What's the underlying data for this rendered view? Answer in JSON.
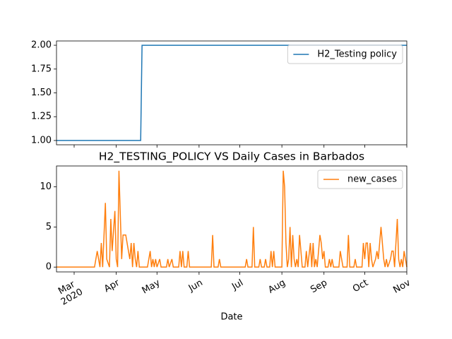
{
  "chart_data": [
    {
      "type": "line",
      "xlim": [
        18309,
        18567
      ],
      "ylim": [
        0.955,
        2.045
      ],
      "yticks": [
        {
          "value": 1,
          "label": "1.00"
        },
        {
          "value": 1.25,
          "label": "1.25"
        },
        {
          "value": 1.5,
          "label": "1.50"
        },
        {
          "value": 1.75,
          "label": "1.75"
        },
        {
          "value": 2,
          "label": "2.00"
        }
      ],
      "legend": "upper right",
      "series": [
        {
          "name": "H2_Testing policy",
          "color": "#1f77b4",
          "x": [
            18309,
            18371,
            18372,
            18567
          ],
          "values": [
            1,
            1,
            2,
            2
          ]
        }
      ]
    },
    {
      "type": "line",
      "title": "H2_TESTING_POLICY VS Daily Cases in Barbados",
      "xlabel": "Date",
      "xlim": [
        18309,
        18567
      ],
      "ylim": [
        -0.6,
        12.6
      ],
      "yticks": [
        0,
        5,
        10
      ],
      "xticks": [
        {
          "value": 18322,
          "label": "Mar\n2020"
        },
        {
          "value": 18353,
          "label": "Apr"
        },
        {
          "value": 18383,
          "label": "May"
        },
        {
          "value": 18414,
          "label": "Jun"
        },
        {
          "value": 18444,
          "label": "Jul"
        },
        {
          "value": 18475,
          "label": "Aug"
        },
        {
          "value": 18506,
          "label": "Sep"
        },
        {
          "value": 18536,
          "label": "Oct"
        },
        {
          "value": 18567,
          "label": "Nov"
        }
      ],
      "legend": "upper right",
      "series": [
        {
          "name": "new_cases",
          "color": "#ff7f0e",
          "x": [
            18309,
            18337,
            18339,
            18341,
            18342,
            18343,
            18345,
            18346,
            18348,
            18349,
            18350,
            18352,
            18353,
            18354,
            18355,
            18357,
            18358,
            18360,
            18362,
            18363,
            18364,
            18365,
            18366,
            18367,
            18368,
            18369,
            18370,
            18376,
            18377,
            18378,
            18379,
            18380,
            18381,
            18382,
            18383,
            18385,
            18386,
            18390,
            18391,
            18392,
            18394,
            18395,
            18399,
            18400,
            18401,
            18402,
            18403,
            18405,
            18406,
            18407,
            18423,
            18424,
            18425,
            18428,
            18429,
            18430,
            18448,
            18449,
            18450,
            18453,
            18454,
            18455,
            18458,
            18459,
            18460,
            18462,
            18463,
            18464,
            18466,
            18467,
            18468,
            18469,
            18470,
            18475,
            18476,
            18477,
            18478,
            18479,
            18480,
            18481,
            18482,
            18483,
            18484,
            18485,
            18486,
            18487,
            18488,
            18489,
            18490,
            18492,
            18493,
            18494,
            18496,
            18497,
            18498,
            18499,
            18500,
            18501,
            18503,
            18504,
            18505,
            18506,
            18507,
            18509,
            18510,
            18511,
            18512,
            18513,
            18517,
            18518,
            18519,
            18520,
            18523,
            18524,
            18525,
            18528,
            18529,
            18530,
            18534,
            18535,
            18536,
            18537,
            18538,
            18539,
            18540,
            18541,
            18542,
            18544,
            18545,
            18546,
            18547,
            18548,
            18549,
            18550,
            18551,
            18552,
            18553,
            18555,
            18556,
            18557,
            18558,
            18560,
            18561,
            18562,
            18563,
            18564,
            18565,
            18566,
            18567
          ],
          "values": [
            0,
            0,
            2,
            0,
            3,
            0,
            8,
            1,
            0,
            6,
            2,
            7,
            1,
            0,
            12,
            1,
            4,
            4,
            2,
            1,
            3,
            0,
            3,
            1,
            0,
            2,
            0,
            0,
            1,
            2,
            0,
            1,
            0,
            1,
            0,
            1,
            0,
            0,
            1,
            0,
            1,
            0,
            0,
            2,
            0,
            2,
            0,
            0,
            2,
            0,
            0,
            4,
            0,
            0,
            1,
            0,
            0,
            1,
            0,
            0,
            5,
            0,
            0,
            1,
            0,
            0,
            1,
            0,
            0,
            2,
            0,
            2,
            0,
            0,
            12,
            10,
            3,
            0,
            1,
            5,
            0,
            4,
            1,
            0,
            1,
            0,
            4,
            2,
            0,
            0,
            2,
            0,
            3,
            0,
            3,
            0,
            1,
            0,
            4,
            3,
            1,
            2,
            0,
            0,
            1,
            0,
            1,
            0,
            0,
            2,
            1,
            0,
            0,
            4,
            0,
            0,
            1,
            0,
            0,
            3,
            1,
            3,
            3,
            0,
            3,
            1,
            0,
            1,
            2,
            1,
            3,
            5,
            3,
            1,
            0,
            1,
            0,
            1,
            2,
            2,
            0,
            6,
            1,
            0,
            1,
            0,
            2,
            1,
            0
          ]
        }
      ]
    }
  ]
}
